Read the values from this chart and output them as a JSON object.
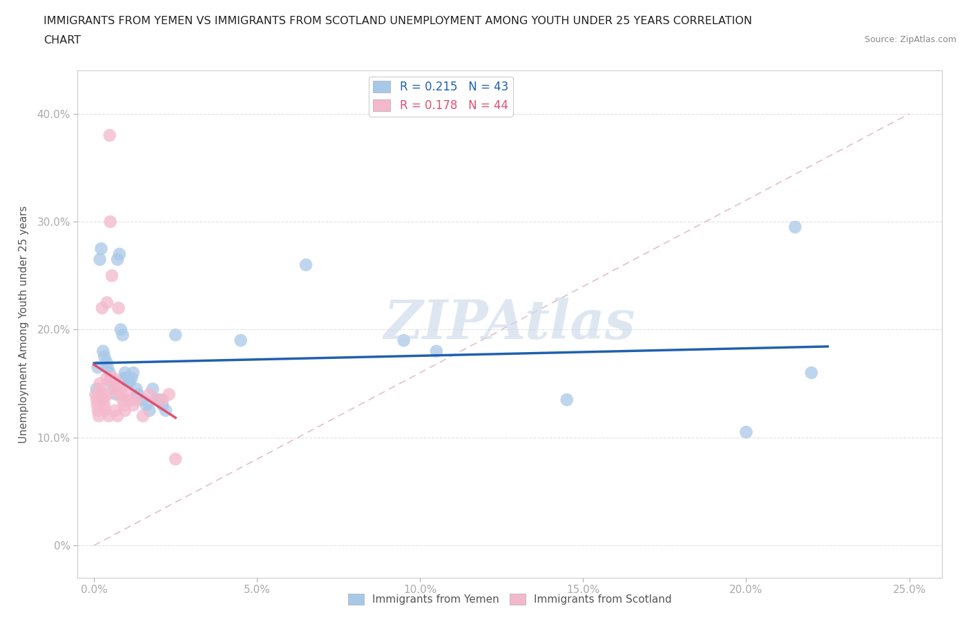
{
  "title_line1": "IMMIGRANTS FROM YEMEN VS IMMIGRANTS FROM SCOTLAND UNEMPLOYMENT AMONG YOUTH UNDER 25 YEARS CORRELATION",
  "title_line2": "CHART",
  "source": "Source: ZipAtlas.com",
  "xlabel_ticks": [
    "0.0%",
    "5.0%",
    "10.0%",
    "15.0%",
    "20.0%",
    "25.0%"
  ],
  "xlabel_vals": [
    0.0,
    5.0,
    10.0,
    15.0,
    20.0,
    25.0
  ],
  "ylabel_ticks": [
    "0%",
    "10.0%",
    "20.0%",
    "30.0%",
    "40.0%"
  ],
  "ylabel_vals": [
    0,
    10,
    20,
    30,
    40
  ],
  "ylabel_label": "Unemployment Among Youth under 25 years",
  "xlim": [
    -0.5,
    26.0
  ],
  "ylim": [
    -3,
    44
  ],
  "legend_r_labels": [
    "R = 0.215   N = 43",
    "R = 0.178   N = 44"
  ],
  "legend_bottom_labels": [
    "Immigrants from Yemen",
    "Immigrants from Scotland"
  ],
  "yemen_color": "#a8c8e8",
  "scotland_color": "#f4b8cc",
  "yemen_line_color": "#2060b0",
  "scotland_line_color": "#e05070",
  "diag_line_color": "#e0c0c8",
  "background_color": "#ffffff",
  "watermark": "ZIPAtlas",
  "watermark_color": "#c8d8e8",
  "yemen_x": [
    0.08,
    0.12,
    0.18,
    0.22,
    0.28,
    0.32,
    0.38,
    0.42,
    0.48,
    0.52,
    0.55,
    0.62,
    0.68,
    0.72,
    0.78,
    0.82,
    0.88,
    0.92,
    0.95,
    1.0,
    1.05,
    1.1,
    1.15,
    1.2,
    1.3,
    1.35,
    1.5,
    1.6,
    1.7,
    1.8,
    1.9,
    2.0,
    2.1,
    2.2,
    2.5,
    4.5,
    6.5,
    9.5,
    10.5,
    14.5,
    20.0,
    21.5,
    22.0
  ],
  "yemen_y": [
    14.5,
    16.5,
    26.5,
    27.5,
    18.0,
    17.5,
    17.0,
    16.5,
    16.0,
    15.5,
    15.0,
    14.5,
    14.0,
    26.5,
    27.0,
    20.0,
    19.5,
    15.5,
    16.0,
    15.5,
    15.0,
    15.2,
    15.5,
    16.0,
    14.5,
    14.0,
    13.5,
    13.0,
    12.5,
    14.5,
    13.5,
    13.5,
    13.0,
    12.5,
    19.5,
    19.0,
    26.0,
    19.0,
    18.0,
    13.5,
    10.5,
    29.5,
    16.0
  ],
  "scotland_x": [
    0.05,
    0.08,
    0.1,
    0.12,
    0.15,
    0.18,
    0.2,
    0.22,
    0.25,
    0.28,
    0.3,
    0.32,
    0.35,
    0.38,
    0.4,
    0.42,
    0.45,
    0.48,
    0.5,
    0.52,
    0.55,
    0.58,
    0.6,
    0.65,
    0.68,
    0.7,
    0.72,
    0.75,
    0.78,
    0.8,
    0.85,
    0.88,
    0.92,
    0.95,
    1.0,
    1.1,
    1.2,
    1.3,
    1.5,
    1.7,
    1.9,
    2.1,
    2.3,
    2.5
  ],
  "scotland_y": [
    14.0,
    13.5,
    13.0,
    12.5,
    12.0,
    15.0,
    14.5,
    13.5,
    22.0,
    14.0,
    13.5,
    13.0,
    12.5,
    15.5,
    22.5,
    14.0,
    12.0,
    38.0,
    30.0,
    15.5,
    25.0,
    15.0,
    15.5,
    12.5,
    14.5,
    15.0,
    12.0,
    22.0,
    14.0,
    14.5,
    14.0,
    13.5,
    13.0,
    12.5,
    14.0,
    13.5,
    13.0,
    13.5,
    12.0,
    14.0,
    13.5,
    13.5,
    14.0,
    8.0
  ]
}
